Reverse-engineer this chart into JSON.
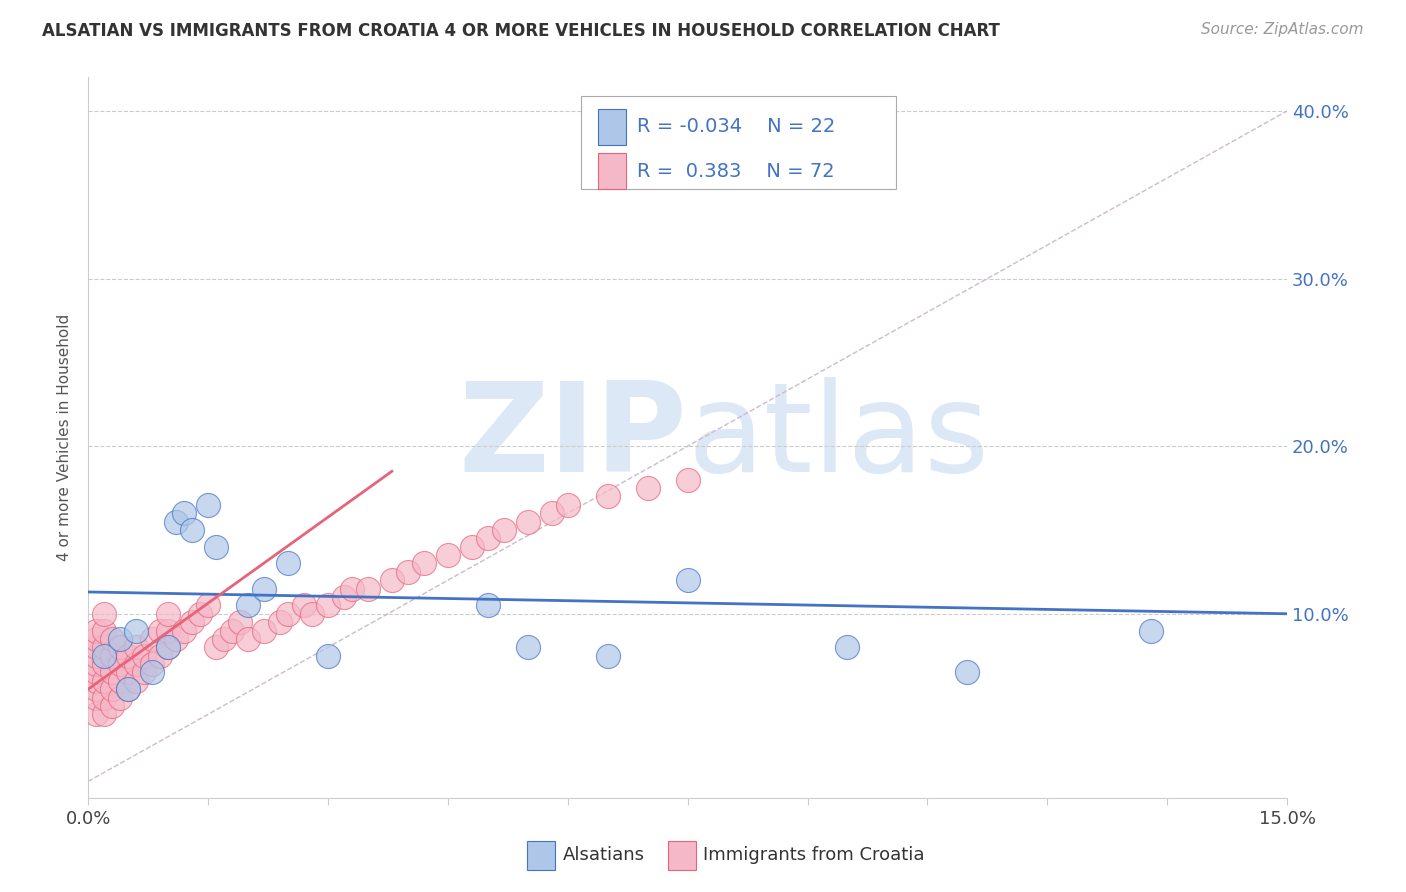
{
  "title": "ALSATIAN VS IMMIGRANTS FROM CROATIA 4 OR MORE VEHICLES IN HOUSEHOLD CORRELATION CHART",
  "source": "Source: ZipAtlas.com",
  "ylabel": "4 or more Vehicles in Household",
  "xlim": [
    0.0,
    0.15
  ],
  "ylim": [
    -0.01,
    0.42
  ],
  "color_alsatian": "#aec6e8",
  "color_croatia": "#f5b8c8",
  "line_color_alsatian": "#4472c4",
  "line_color_croatia": "#e8637a",
  "watermark_zip": "ZIP",
  "watermark_atlas": "atlas",
  "watermark_color": "#dce8f5",
  "background_color": "#ffffff",
  "als_x": [
    0.002,
    0.004,
    0.005,
    0.006,
    0.008,
    0.01,
    0.011,
    0.012,
    0.013,
    0.015,
    0.016,
    0.02,
    0.022,
    0.025,
    0.03,
    0.05,
    0.055,
    0.065,
    0.075,
    0.095,
    0.11,
    0.133
  ],
  "als_y": [
    0.075,
    0.085,
    0.055,
    0.09,
    0.065,
    0.08,
    0.155,
    0.16,
    0.15,
    0.165,
    0.14,
    0.105,
    0.115,
    0.13,
    0.075,
    0.105,
    0.08,
    0.075,
    0.12,
    0.08,
    0.065,
    0.09
  ],
  "cro_x": [
    0.001,
    0.001,
    0.001,
    0.001,
    0.001,
    0.001,
    0.001,
    0.001,
    0.001,
    0.001,
    0.002,
    0.002,
    0.002,
    0.002,
    0.002,
    0.002,
    0.002,
    0.003,
    0.003,
    0.003,
    0.003,
    0.003,
    0.004,
    0.004,
    0.004,
    0.004,
    0.005,
    0.005,
    0.005,
    0.006,
    0.006,
    0.006,
    0.007,
    0.007,
    0.008,
    0.008,
    0.009,
    0.009,
    0.01,
    0.01,
    0.01,
    0.011,
    0.012,
    0.013,
    0.014,
    0.015,
    0.016,
    0.017,
    0.018,
    0.019,
    0.02,
    0.022,
    0.024,
    0.025,
    0.027,
    0.028,
    0.03,
    0.032,
    0.033,
    0.035,
    0.038,
    0.04,
    0.042,
    0.045,
    0.048,
    0.05,
    0.052,
    0.055,
    0.058,
    0.06,
    0.065,
    0.07,
    0.075
  ],
  "cro_y": [
    0.04,
    0.05,
    0.055,
    0.06,
    0.065,
    0.07,
    0.075,
    0.08,
    0.085,
    0.09,
    0.04,
    0.05,
    0.06,
    0.07,
    0.08,
    0.09,
    0.1,
    0.045,
    0.055,
    0.065,
    0.075,
    0.085,
    0.05,
    0.06,
    0.07,
    0.08,
    0.055,
    0.065,
    0.075,
    0.06,
    0.07,
    0.08,
    0.065,
    0.075,
    0.07,
    0.085,
    0.075,
    0.09,
    0.08,
    0.09,
    0.1,
    0.085,
    0.09,
    0.095,
    0.1,
    0.105,
    0.08,
    0.085,
    0.09,
    0.095,
    0.085,
    0.09,
    0.095,
    0.1,
    0.105,
    0.1,
    0.105,
    0.11,
    0.115,
    0.115,
    0.12,
    0.125,
    0.13,
    0.135,
    0.14,
    0.145,
    0.15,
    0.155,
    0.16,
    0.165,
    0.17,
    0.175,
    0.18
  ],
  "als_line_x": [
    0.0,
    0.15
  ],
  "als_line_y": [
    0.113,
    0.1
  ],
  "cro_line_x": [
    0.0,
    0.038
  ],
  "cro_line_y": [
    0.055,
    0.185
  ],
  "diag_line_x": [
    0.0,
    0.15
  ],
  "diag_line_y": [
    0.0,
    0.4
  ]
}
